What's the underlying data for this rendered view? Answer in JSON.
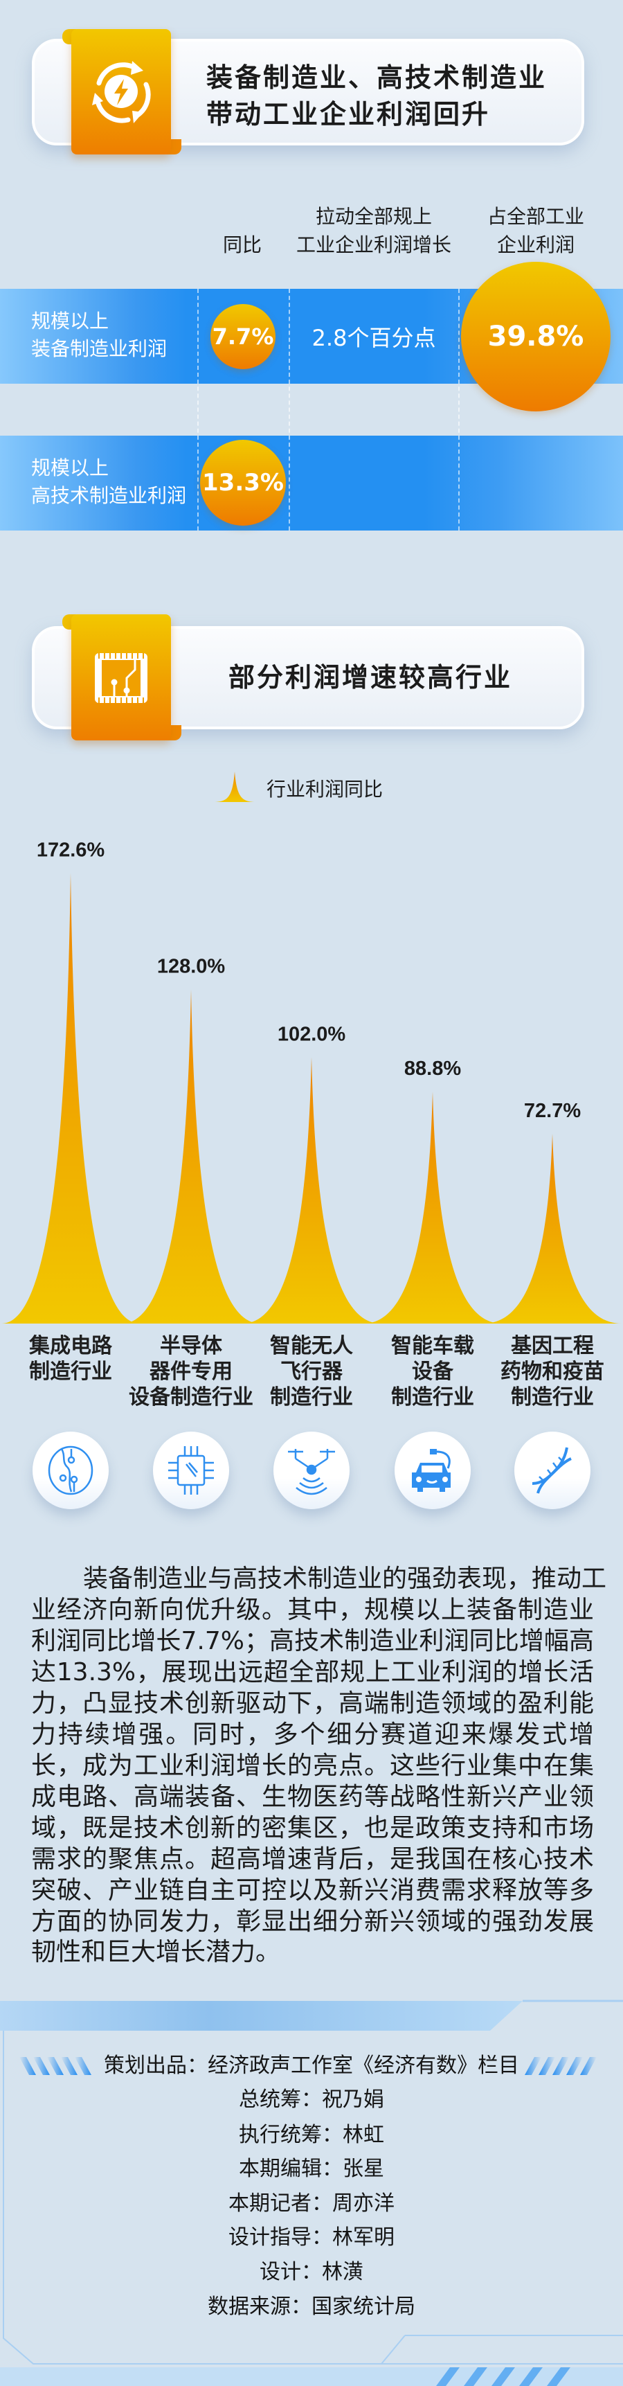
{
  "section1": {
    "title_line1": "装备制造业、高技术制造业",
    "title_line2": "带动工业企业利润回升",
    "icon": "recycle-bolt-icon",
    "columns": {
      "yoy": "同比",
      "pull_line1": "拉动全部规上",
      "pull_line2": "工业企业利润增长",
      "share_line1": "占全部工业",
      "share_line2": "企业利润"
    },
    "rows": [
      {
        "label_line1": "规模以上",
        "label_line2": "装备制造业利润",
        "yoy": "7.7%",
        "pull": "2.8个百分点",
        "share": "39.8%"
      },
      {
        "label_line1": "规模以上",
        "label_line2": "高技术制造业利润",
        "yoy": "13.3%"
      }
    ]
  },
  "section2": {
    "title": "部分利润增速较高行业",
    "icon": "chip-icon",
    "legend": "行业利润同比"
  },
  "chart_data": {
    "type": "bar",
    "categories": [
      [
        "集成电路",
        "制造行业"
      ],
      [
        "半导体",
        "器件专用",
        "设备制造行业"
      ],
      [
        "智能无人",
        "飞行器",
        "制造行业"
      ],
      [
        "智能车载",
        "设备",
        "制造行业"
      ],
      [
        "基因工程",
        "药物和疫苗",
        "制造行业"
      ]
    ],
    "series": [
      {
        "name": "行业利润同比",
        "values": [
          172.6,
          128.0,
          102.0,
          88.8,
          72.7
        ]
      }
    ],
    "data_labels": [
      "172.6%",
      "128.0%",
      "102.0%",
      "88.8%",
      "72.7%"
    ],
    "unit": "%",
    "legend": "top-center",
    "grid": false,
    "colors": {
      "top": "#ee8a00",
      "bottom": "#f2c800"
    }
  },
  "category_icons": [
    "circuit-icon",
    "semiconductor-chip-icon",
    "drone-icon",
    "electric-car-icon",
    "dna-icon"
  ],
  "paragraph_lines": [
    "装备制造业与高技术制造业的强劲表现，推动工",
    "业经济向新向优升级。其中，规模以上装备制造业",
    "利润同比增长7.7%；高技术制造业利润同比增幅高",
    "达13.3%，展现出远超全部规上工业利润的增长活",
    "力，凸显技术创新驱动下，高端制造领域的盈利能",
    "力持续增强。同时，多个细分赛道迎来爆发式增",
    "长，成为工业利润增长的亮点。这些行业集中在集",
    "成电路、高端装备、生物医药等战略性新兴产业领",
    "域，既是技术创新的密集区，也是政策支持和市场",
    "需求的聚焦点。超高增速背后，是我国在核心技术",
    "突破、产业链自主可控以及新兴消费需求释放等多",
    "方面的协同发力，彰显出细分新兴领域的强劲发展",
    "韧性和巨大增长潜力。"
  ],
  "credits": [
    "策划出品：经济政声工作室《经济有数》栏目",
    "总统筹：祝乃娟",
    "执行统筹：林虹",
    "本期编辑：张星",
    "本期记者：周亦洋",
    "设计指导：林军明",
    "设计：林潢",
    "数据来源：国家统计局"
  ],
  "colors": {
    "background": "#d6e3ee",
    "band_blue": "#2490f2",
    "orange_top": "#f2c700",
    "orange_bottom": "#ee7e00",
    "icon_blue": "#2f8ff0"
  }
}
